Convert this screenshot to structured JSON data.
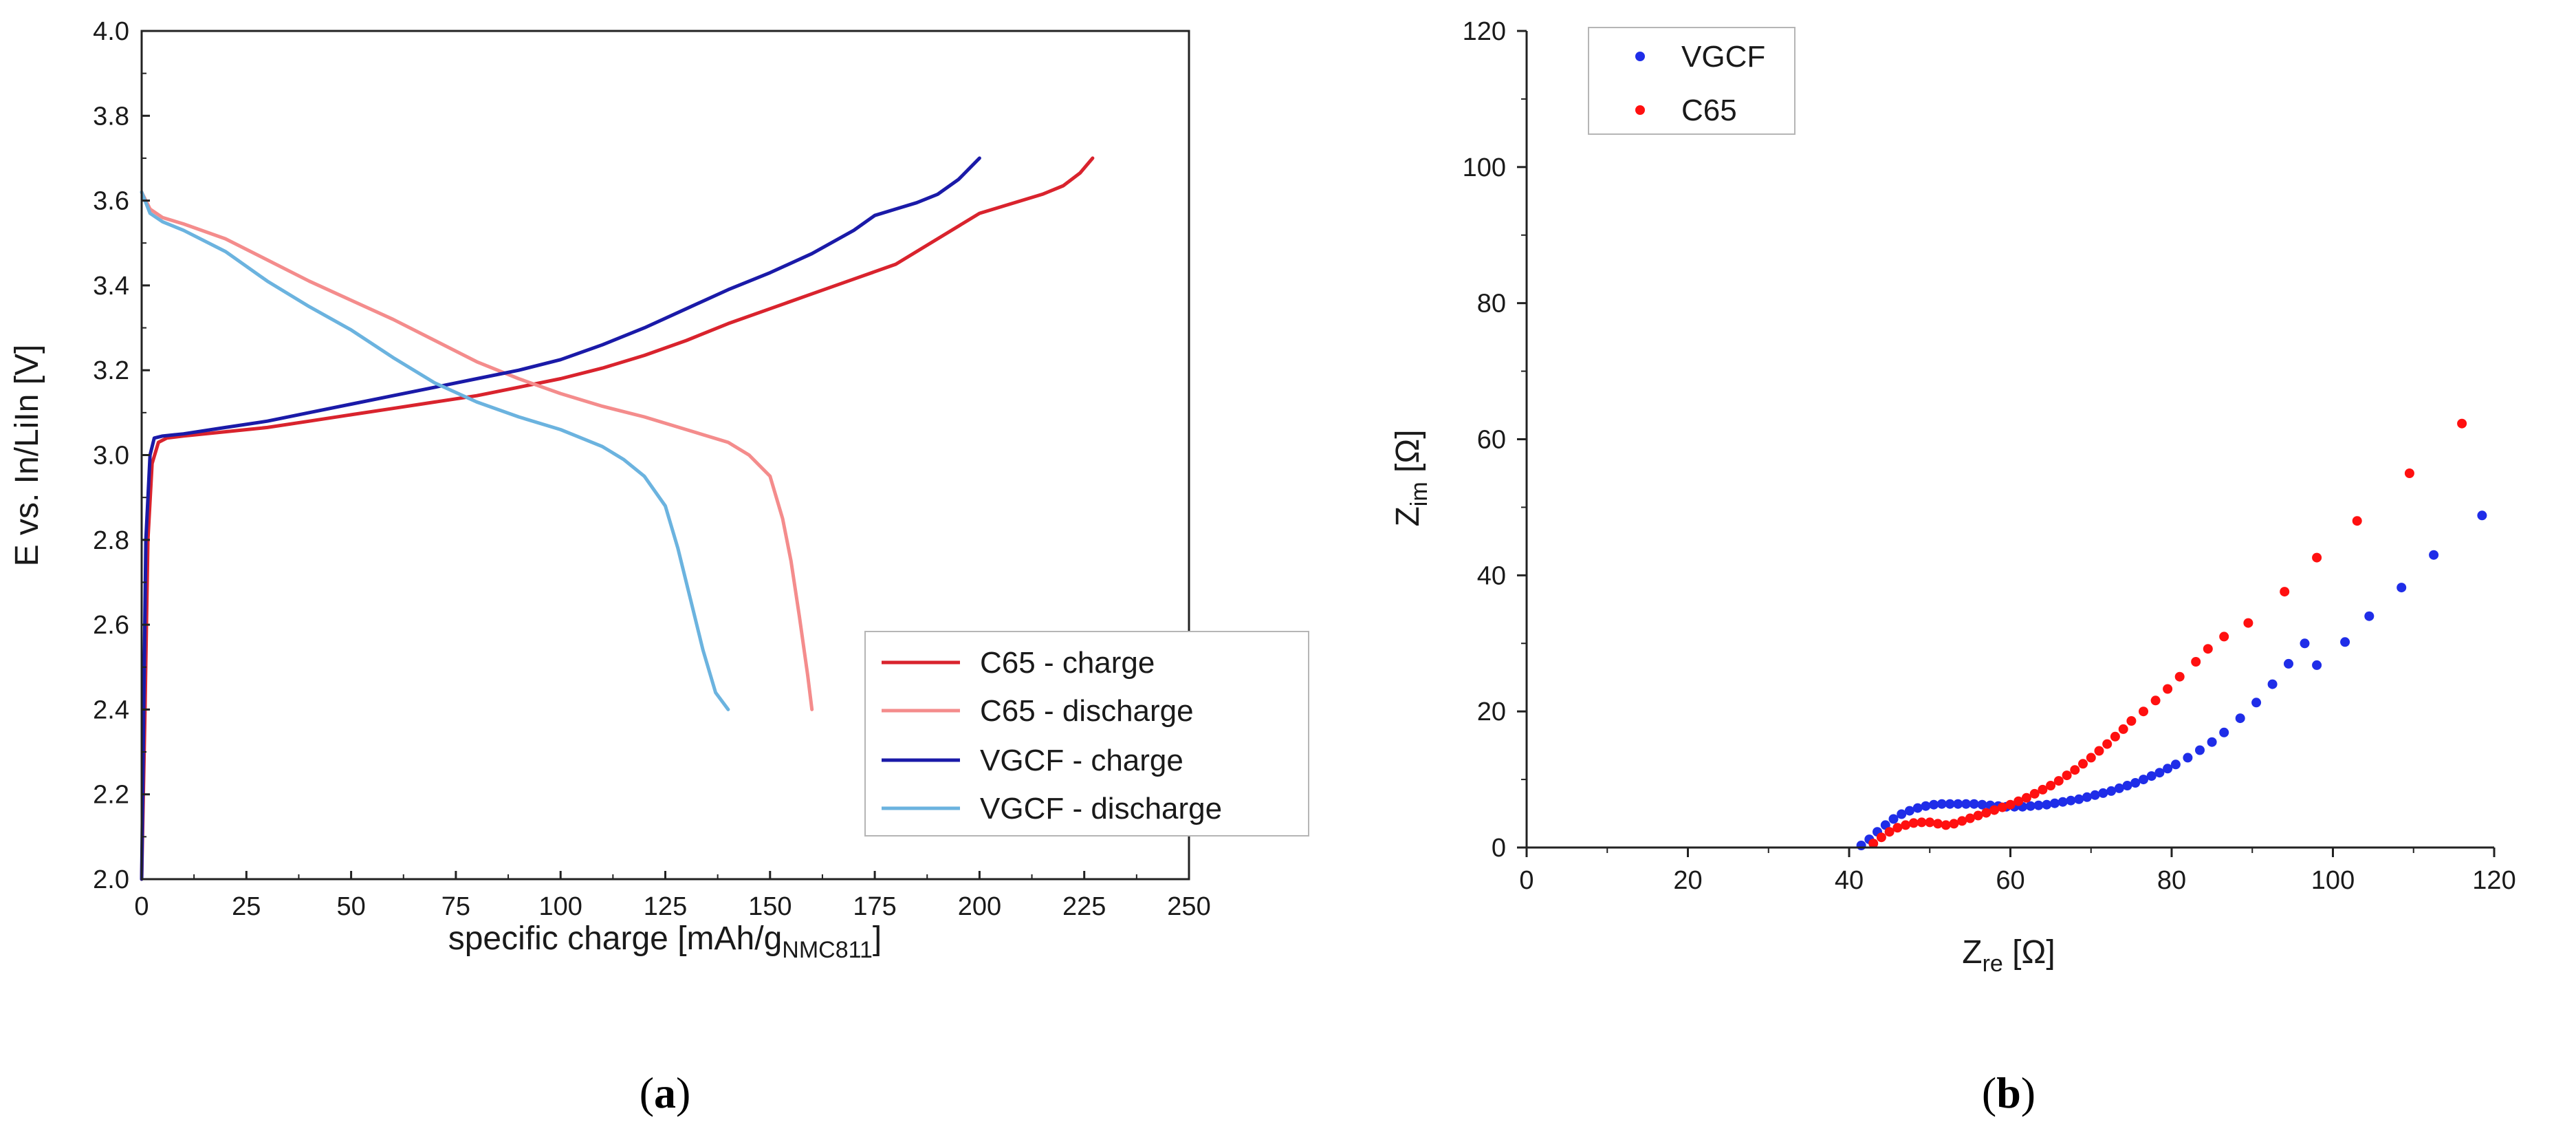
{
  "chart_data": [
    {
      "type": "line",
      "panel_label": {
        "open": "(",
        "letter": "a",
        "close": ")"
      },
      "xlabel": {
        "text": "specific charge [mAh/g",
        "sub": "NMC811",
        "close": "]"
      },
      "ylabel": "E vs. In/LiIn [V]",
      "xlim": [
        0,
        250
      ],
      "ylim": [
        2.0,
        4.0
      ],
      "xticks": [
        0,
        25,
        50,
        75,
        100,
        125,
        150,
        175,
        200,
        225,
        250
      ],
      "yticks": [
        "2.0",
        "2.2",
        "2.4",
        "2.6",
        "2.8",
        "3.0",
        "3.2",
        "3.4",
        "3.6",
        "3.8",
        "4.0"
      ],
      "legend_position": "bottom-right",
      "series": [
        {
          "name": "C65 - charge",
          "color": "#d9232d",
          "x": [
            0,
            0.8,
            1.5,
            2.5,
            4,
            6,
            10,
            20,
            30,
            40,
            50,
            60,
            70,
            80,
            90,
            100,
            110,
            120,
            130,
            140,
            150,
            160,
            170,
            180,
            190,
            200,
            210,
            215,
            220,
            224,
            227
          ],
          "y": [
            2.0,
            2.4,
            2.8,
            2.98,
            3.03,
            3.04,
            3.045,
            3.055,
            3.065,
            3.08,
            3.095,
            3.11,
            3.125,
            3.14,
            3.16,
            3.18,
            3.205,
            3.235,
            3.27,
            3.31,
            3.345,
            3.38,
            3.415,
            3.45,
            3.51,
            3.57,
            3.6,
            3.615,
            3.635,
            3.665,
            3.7
          ]
        },
        {
          "name": "C65 - discharge",
          "color": "#f48c8c",
          "x": [
            0,
            2,
            5,
            10,
            20,
            30,
            40,
            50,
            60,
            70,
            80,
            90,
            100,
            110,
            120,
            130,
            140,
            145,
            150,
            153,
            155,
            157,
            159,
            160
          ],
          "y": [
            3.62,
            3.58,
            3.56,
            3.545,
            3.51,
            3.46,
            3.41,
            3.365,
            3.32,
            3.27,
            3.22,
            3.18,
            3.145,
            3.115,
            3.09,
            3.06,
            3.03,
            3.0,
            2.95,
            2.85,
            2.75,
            2.62,
            2.48,
            2.4
          ]
        },
        {
          "name": "VGCF - charge",
          "color": "#1a1aa8",
          "x": [
            0,
            0.5,
            1,
            2,
            3,
            5,
            10,
            20,
            30,
            40,
            50,
            60,
            70,
            80,
            90,
            100,
            110,
            120,
            130,
            140,
            150,
            160,
            170,
            175,
            180,
            185,
            190,
            195,
            200
          ],
          "y": [
            2.0,
            2.4,
            2.8,
            3.0,
            3.04,
            3.045,
            3.05,
            3.065,
            3.08,
            3.1,
            3.12,
            3.14,
            3.16,
            3.18,
            3.2,
            3.225,
            3.26,
            3.3,
            3.345,
            3.39,
            3.43,
            3.475,
            3.53,
            3.565,
            3.58,
            3.595,
            3.615,
            3.65,
            3.7
          ]
        },
        {
          "name": "VGCF - discharge",
          "color": "#6bb3df",
          "x": [
            0,
            2,
            5,
            10,
            20,
            30,
            40,
            50,
            60,
            70,
            80,
            90,
            100,
            110,
            115,
            120,
            125,
            128,
            131,
            134,
            137,
            140
          ],
          "y": [
            3.62,
            3.57,
            3.55,
            3.53,
            3.48,
            3.41,
            3.35,
            3.295,
            3.23,
            3.17,
            3.125,
            3.09,
            3.06,
            3.02,
            2.99,
            2.95,
            2.88,
            2.78,
            2.66,
            2.54,
            2.44,
            2.4
          ]
        }
      ]
    },
    {
      "type": "scatter",
      "panel_label": {
        "open": "(",
        "letter": "b",
        "close": ")"
      },
      "xlabel": {
        "main": "Z",
        "sub": "re",
        "unit": " [Ω]"
      },
      "ylabel": {
        "main": "Z",
        "sub": "im",
        "unit": " [Ω]"
      },
      "xlim": [
        0,
        120
      ],
      "ylim": [
        0,
        120
      ],
      "xticks": [
        0,
        20,
        40,
        60,
        80,
        100,
        120
      ],
      "yticks": [
        0,
        20,
        40,
        60,
        80,
        100,
        120
      ],
      "legend_position": "top-left",
      "series": [
        {
          "name": "VGCF",
          "color": "#1f2de8",
          "x": [
            41.5,
            42.5,
            43.5,
            44.5,
            45.5,
            46.5,
            47.5,
            48.5,
            49.5,
            50.5,
            51.5,
            52.5,
            53.5,
            54.5,
            55.5,
            56.5,
            57.5,
            58.5,
            59.5,
            60.5,
            61.5,
            62.5,
            63.5,
            64.5,
            65.5,
            66.5,
            67.5,
            68.5,
            69.5,
            70.5,
            71.5,
            72.5,
            73.5,
            74.5,
            75.5,
            76.5,
            77.5,
            78.5,
            79.5,
            80.5,
            82,
            83.5,
            85,
            86.5,
            88.5,
            90.5,
            92.5,
            94.5,
            96.5,
            98,
            101.5,
            104.5,
            108.5,
            112.5,
            118.5
          ],
          "y": [
            0.3,
            1.2,
            2.3,
            3.3,
            4.2,
            4.9,
            5.4,
            5.8,
            6.1,
            6.3,
            6.4,
            6.4,
            6.4,
            6.4,
            6.4,
            6.3,
            6.2,
            6.1,
            6.0,
            6.0,
            6.0,
            6.1,
            6.2,
            6.3,
            6.5,
            6.7,
            6.9,
            7.1,
            7.4,
            7.7,
            8.0,
            8.3,
            8.7,
            9.1,
            9.5,
            10.0,
            10.5,
            11.0,
            11.6,
            12.2,
            13.2,
            14.3,
            15.5,
            16.9,
            19.0,
            21.3,
            24.0,
            27.0,
            30.0,
            26.8,
            30.2,
            34.0,
            38.2,
            43.0,
            48.8
          ]
        },
        {
          "name": "C65",
          "color": "#ff1010",
          "x": [
            43,
            44,
            45,
            46,
            47,
            48,
            49,
            50,
            51,
            52,
            53,
            54,
            55,
            56,
            57,
            58,
            59,
            60,
            61,
            62,
            63,
            64,
            65,
            66,
            67,
            68,
            69,
            70,
            71,
            72,
            73,
            74,
            75,
            76.5,
            78,
            79.5,
            81,
            83,
            84.5,
            86.5,
            89.5,
            94,
            98,
            103,
            109.5,
            116
          ],
          "y": [
            0.6,
            1.5,
            2.3,
            2.9,
            3.3,
            3.6,
            3.7,
            3.7,
            3.5,
            3.3,
            3.5,
            3.9,
            4.3,
            4.7,
            5.1,
            5.5,
            5.9,
            6.3,
            6.8,
            7.3,
            7.9,
            8.5,
            9.1,
            9.8,
            10.6,
            11.4,
            12.3,
            13.2,
            14.2,
            15.2,
            16.3,
            17.4,
            18.6,
            20.0,
            21.6,
            23.3,
            25.1,
            27.3,
            29.2,
            31.0,
            33.0,
            37.6,
            42.6,
            48.0,
            55.0,
            62.3
          ]
        }
      ]
    }
  ]
}
